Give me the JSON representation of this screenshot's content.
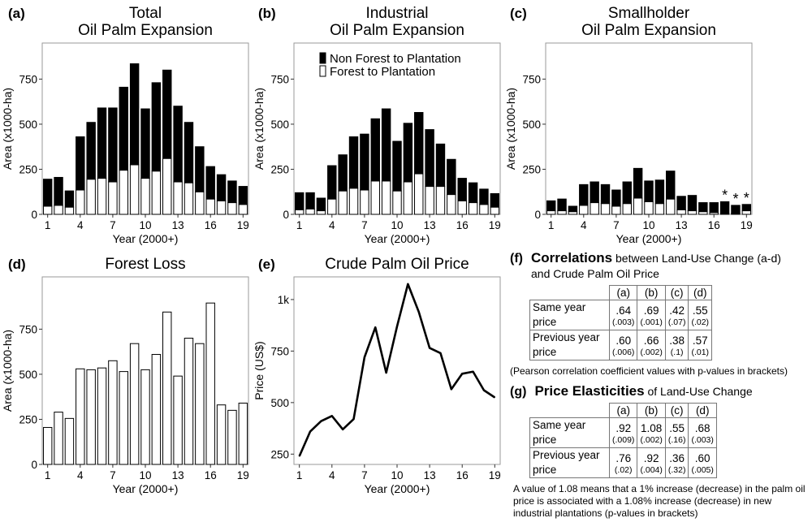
{
  "chart_data": [
    {
      "id": "a",
      "type": "bar",
      "panel_label": "(a)",
      "title_lines": [
        "Total",
        "Oil Palm Expansion"
      ],
      "xlabel": "Year (2000+)",
      "ylabel": "Area (x1000-ha)",
      "x": [
        1,
        2,
        3,
        4,
        5,
        6,
        7,
        8,
        9,
        10,
        11,
        12,
        13,
        14,
        15,
        16,
        17,
        18,
        19
      ],
      "xticks": [
        1,
        4,
        7,
        10,
        13,
        16,
        19
      ],
      "xtick_labels": [
        "1",
        "4",
        "7",
        "10",
        "13",
        "16",
        "19"
      ],
      "ylim": [
        0,
        950
      ],
      "yticks": [
        0,
        250,
        500,
        750
      ],
      "ytick_labels": [
        "0",
        "250",
        "500",
        "750"
      ],
      "stacked": true,
      "series": [
        {
          "name": "Forest to Plantation",
          "color": "#ffffff",
          "values": [
            45,
            50,
            40,
            135,
            195,
            200,
            180,
            245,
            275,
            200,
            240,
            310,
            180,
            175,
            125,
            85,
            75,
            65,
            55
          ]
        },
        {
          "name": "Non Forest to Plantation",
          "color": "#000000",
          "values": [
            150,
            155,
            90,
            295,
            315,
            390,
            410,
            460,
            560,
            385,
            490,
            490,
            420,
            335,
            250,
            180,
            145,
            120,
            100
          ]
        }
      ]
    },
    {
      "id": "b",
      "type": "bar",
      "panel_label": "(b)",
      "title_lines": [
        "Industrial",
        "Oil Palm Expansion"
      ],
      "xlabel": "Year (2000+)",
      "ylabel": "Area (x1000-ha)",
      "x": [
        1,
        2,
        3,
        4,
        5,
        6,
        7,
        8,
        9,
        10,
        11,
        12,
        13,
        14,
        15,
        16,
        17,
        18,
        19
      ],
      "xticks": [
        1,
        4,
        7,
        10,
        13,
        16,
        19
      ],
      "xtick_labels": [
        "1",
        "4",
        "7",
        "10",
        "13",
        "16",
        "19"
      ],
      "ylim": [
        0,
        950
      ],
      "yticks": [
        0,
        250,
        500,
        750
      ],
      "ytick_labels": [
        "0",
        "250",
        "500",
        "750"
      ],
      "stacked": true,
      "legend": {
        "position": "top-center",
        "entries": [
          "Non Forest to Plantation",
          "Forest to Plantation"
        ]
      },
      "series": [
        {
          "name": "Forest to Plantation",
          "color": "#ffffff",
          "values": [
            25,
            30,
            20,
            85,
            130,
            145,
            135,
            185,
            185,
            130,
            180,
            225,
            155,
            155,
            110,
            75,
            65,
            55,
            40
          ]
        },
        {
          "name": "Non Forest to Plantation",
          "color": "#000000",
          "values": [
            95,
            90,
            70,
            185,
            200,
            285,
            310,
            345,
            400,
            275,
            325,
            340,
            315,
            235,
            195,
            125,
            110,
            85,
            75
          ]
        }
      ]
    },
    {
      "id": "c",
      "type": "bar",
      "panel_label": "(c)",
      "title_lines": [
        "Smallholder",
        "Oil Palm Expansion"
      ],
      "xlabel": "Year (2000+)",
      "ylabel": "Area (x1000-ha)",
      "x": [
        1,
        2,
        3,
        4,
        5,
        6,
        7,
        8,
        9,
        10,
        11,
        12,
        13,
        14,
        15,
        16,
        17,
        18,
        19
      ],
      "xticks": [
        1,
        4,
        7,
        10,
        13,
        16,
        19
      ],
      "xtick_labels": [
        "1",
        "4",
        "7",
        "10",
        "13",
        "16",
        "19"
      ],
      "ylim": [
        0,
        950
      ],
      "yticks": [
        0,
        250,
        500,
        750
      ],
      "ytick_labels": [
        "0",
        "250",
        "500",
        "750"
      ],
      "stacked": true,
      "annotations": [
        {
          "x": 17,
          "text": "*"
        },
        {
          "x": 18,
          "text": "*"
        },
        {
          "x": 19,
          "text": "*"
        }
      ],
      "series": [
        {
          "name": "Forest to Plantation",
          "color": "#ffffff",
          "values": [
            20,
            20,
            15,
            50,
            65,
            60,
            45,
            60,
            90,
            70,
            60,
            85,
            25,
            20,
            15,
            10,
            5,
            5,
            20
          ]
        },
        {
          "name": "Non Forest to Plantation",
          "color": "#000000",
          "values": [
            55,
            65,
            30,
            115,
            115,
            105,
            90,
            120,
            165,
            115,
            130,
            155,
            75,
            85,
            50,
            55,
            65,
            45,
            35
          ]
        }
      ]
    },
    {
      "id": "d",
      "type": "bar",
      "panel_label": "(d)",
      "title_lines": [
        "Forest Loss"
      ],
      "xlabel": "Year (2000+)",
      "ylabel": "Area (x1000-ha)",
      "x": [
        1,
        2,
        3,
        4,
        5,
        6,
        7,
        8,
        9,
        10,
        11,
        12,
        13,
        14,
        15,
        16,
        17,
        18,
        19
      ],
      "xticks": [
        1,
        4,
        7,
        10,
        13,
        16,
        19
      ],
      "xtick_labels": [
        "1",
        "4",
        "7",
        "10",
        "13",
        "16",
        "19"
      ],
      "ylim": [
        0,
        1040
      ],
      "yticks": [
        0,
        250,
        500,
        750
      ],
      "ytick_labels": [
        "0",
        "250",
        "500",
        "750"
      ],
      "stacked": false,
      "series": [
        {
          "name": "",
          "color": "#ffffff",
          "values": [
            205,
            290,
            255,
            530,
            525,
            535,
            575,
            515,
            670,
            525,
            610,
            845,
            490,
            700,
            670,
            895,
            330,
            300,
            340
          ]
        }
      ]
    },
    {
      "id": "e",
      "type": "line",
      "panel_label": "(e)",
      "title_lines": [
        "Crude Palm Oil Price"
      ],
      "xlabel": "Year (2000+)",
      "ylabel": "Price (US$)",
      "x": [
        1,
        2,
        3,
        4,
        5,
        6,
        7,
        8,
        9,
        10,
        11,
        12,
        13,
        14,
        15,
        16,
        17,
        18,
        19
      ],
      "xticks": [
        1,
        4,
        7,
        10,
        13,
        16,
        19
      ],
      "xtick_labels": [
        "1",
        "4",
        "7",
        "10",
        "13",
        "16",
        "19"
      ],
      "ylim": [
        200,
        1110
      ],
      "yticks": [
        250,
        500,
        750,
        1000
      ],
      "ytick_labels": [
        "250",
        "500",
        "750",
        "1k"
      ],
      "series": [
        {
          "name": "",
          "color": "#000000",
          "values": [
            240,
            360,
            410,
            435,
            370,
            420,
            720,
            865,
            645,
            870,
            1075,
            940,
            765,
            740,
            565,
            640,
            650,
            560,
            525
          ]
        }
      ]
    }
  ],
  "tables": {
    "f": {
      "label": "(f)",
      "title_bold": "Correlations",
      "title_rest": " between Land-Use Change (a-d)",
      "title_line2": "and Crude Palm Oil Price",
      "headers": [
        "(a)",
        "(b)",
        "(c)",
        "(d)"
      ],
      "rows": [
        {
          "label1": "Same year",
          "label2": "price",
          "values": [
            ".64",
            ".69",
            ".42",
            ".55"
          ],
          "pvalues": [
            "(.003)",
            "(.001)",
            "(.07)",
            "(.02)"
          ]
        },
        {
          "label1": "Previous year",
          "label2": "price",
          "values": [
            ".60",
            ".66",
            ".38",
            ".57"
          ],
          "pvalues": [
            "(.006)",
            "(.002)",
            "(.1)",
            "(.01)"
          ]
        }
      ],
      "note": "(Pearson correlation coefficient values with p-values in brackets)"
    },
    "g": {
      "label": "(g)",
      "title_bold": "Price Elasticities",
      "title_rest": " of Land-Use Change",
      "headers": [
        "(a)",
        "(b)",
        "(c)",
        "(d)"
      ],
      "rows": [
        {
          "label1": "Same year",
          "label2": "price",
          "values": [
            ".92",
            "1.08",
            ".55",
            ".68"
          ],
          "pvalues": [
            "(.009)",
            "(.002)",
            "(.16)",
            "(.003)"
          ]
        },
        {
          "label1": "Previous year",
          "label2": "price",
          "values": [
            ".76",
            ".92",
            ".36",
            ".60"
          ],
          "pvalues": [
            "(.02)",
            "(.004)",
            "(.32)",
            "(.005)"
          ]
        }
      ],
      "note": "A value of 1.08 means that a 1% increase (decrease) in the palm oil price is associated with a 1.08% increase (decrease) in new industrial plantations (p-values in brackets)"
    }
  }
}
